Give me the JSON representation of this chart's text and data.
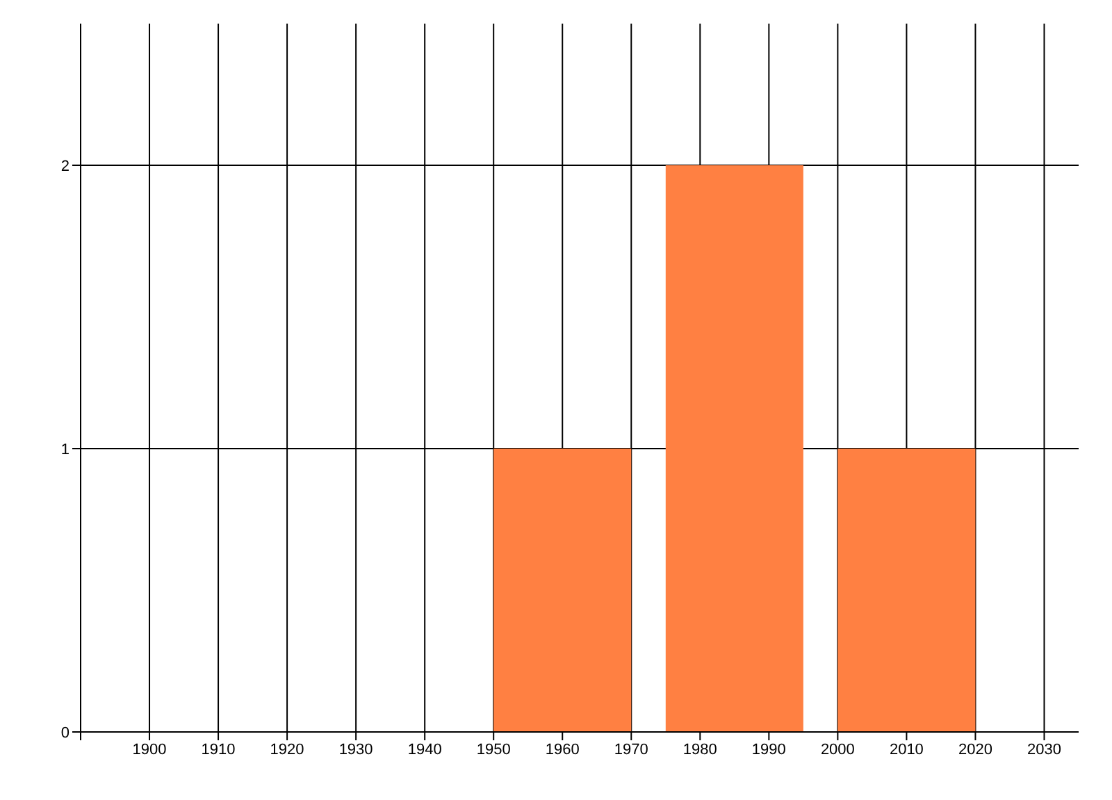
{
  "chart_data": {
    "type": "histogram",
    "bins": [
      1950,
      1970,
      1975,
      1995,
      2000,
      2020
    ],
    "values": [
      1,
      0,
      2,
      0,
      1
    ],
    "color": "#ff8042",
    "xlim": [
      1890,
      2035
    ],
    "xticks": [
      {
        "value": 1890,
        "label": null
      },
      1900,
      1910,
      1920,
      1930,
      1940,
      1950,
      1960,
      1970,
      1980,
      1990,
      2000,
      2010,
      2020,
      2030
    ],
    "ylim": [
      0,
      2.5
    ],
    "yticks": [
      0,
      1,
      2
    ],
    "grid": true
  }
}
